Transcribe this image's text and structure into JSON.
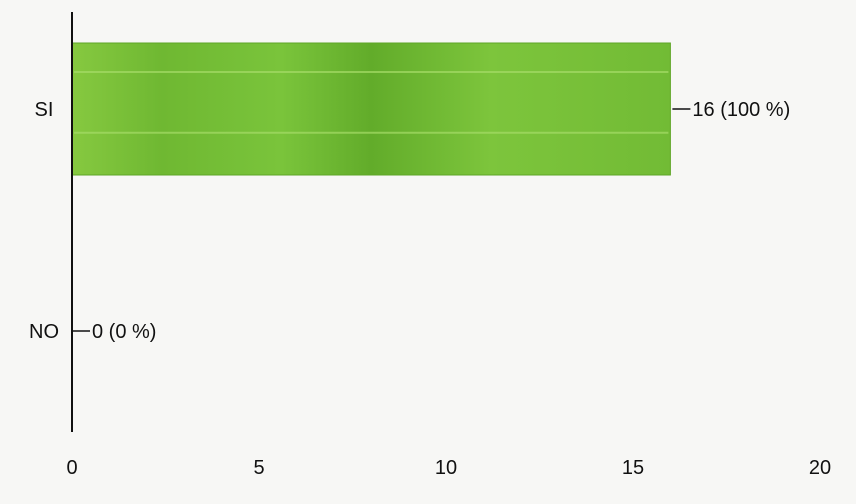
{
  "colors": {
    "bar": "#7cc23a",
    "bar_dark": "#5ea626",
    "axis": "#111111",
    "background": "#f7f7f5"
  },
  "chart_data": {
    "type": "bar",
    "orientation": "horizontal",
    "categories": [
      "SI",
      "NO"
    ],
    "values": [
      16,
      0
    ],
    "data_labels": [
      "16 (100 %)",
      "0 (0 %)"
    ],
    "xlim": [
      0,
      20
    ],
    "xticks": [
      0,
      5,
      10,
      15,
      20
    ],
    "xtick_labels": [
      "0",
      "5",
      "10",
      "15",
      "20"
    ],
    "grid": false,
    "title": "",
    "xlabel": "",
    "ylabel": ""
  }
}
